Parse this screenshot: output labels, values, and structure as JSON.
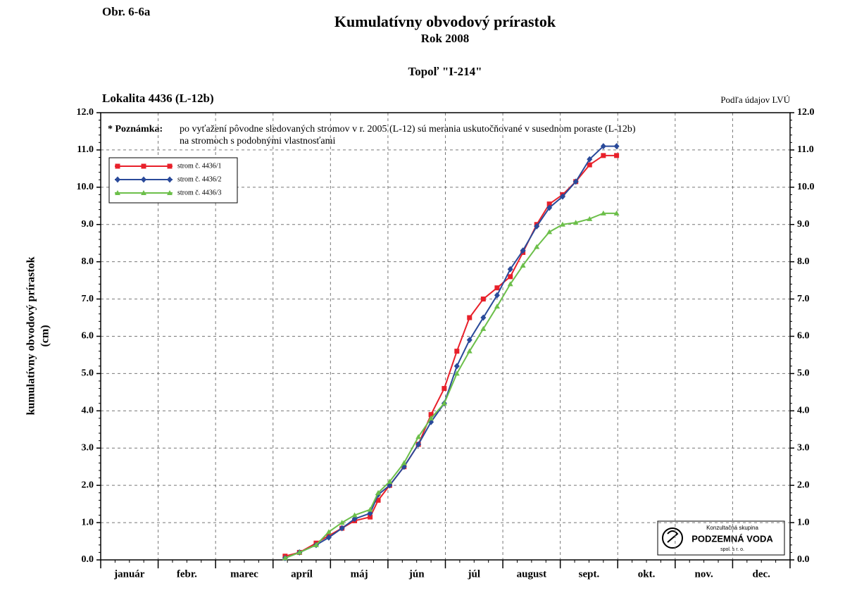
{
  "chart_data": {
    "type": "line",
    "figure_label": "Obr. 6-6a",
    "title": "Kumulatívny obvodový prírastok",
    "subtitle": "Rok 2008",
    "species": "Topoľ \"I-214\"",
    "location": "Lokalita 4436 (L-12b)",
    "source": "Podľa údajov LVÚ",
    "note": {
      "label": "* Poznámka:",
      "lines": [
        "po vyťažení pôvodne sledovaných stromov v r. 2005 (L-12) sú merania uskutočňované v susednom poraste (L-12b)",
        "na stromoch s podobnými vlastnosťami"
      ]
    },
    "ylabel": [
      "kumulatívny obvodový prírastok",
      "(cm)"
    ],
    "logo": [
      "Konzultačná skupina",
      "PODZEMNÁ VODA",
      "spol. s r. o."
    ],
    "categories": [
      "január",
      "febr.",
      "marec",
      "apríl",
      "máj",
      "jún",
      "júl",
      "august",
      "sept.",
      "okt.",
      "nov.",
      "dec."
    ],
    "xlim": [
      0,
      12
    ],
    "x": [
      3.21,
      3.46,
      3.75,
      3.97,
      4.2,
      4.42,
      4.69,
      4.83,
      5.03,
      5.28,
      5.53,
      5.75,
      5.98,
      6.2,
      6.42,
      6.66,
      6.9,
      7.13,
      7.35,
      7.59,
      7.81,
      8.04,
      8.27,
      8.51,
      8.75,
      8.98
    ],
    "ylim": [
      0,
      12
    ],
    "yticks": [
      {
        "value": 0,
        "label": "0.0"
      },
      {
        "value": 1,
        "label": "1.0"
      },
      {
        "value": 2,
        "label": "2.0"
      },
      {
        "value": 3,
        "label": "3.0"
      },
      {
        "value": 4,
        "label": "4.0"
      },
      {
        "value": 5,
        "label": "5.0"
      },
      {
        "value": 6,
        "label": "6.0"
      },
      {
        "value": 7,
        "label": "7.0"
      },
      {
        "value": 8,
        "label": "8.0"
      },
      {
        "value": 9,
        "label": "9.0"
      },
      {
        "value": 10,
        "label": "10.0"
      },
      {
        "value": 11,
        "label": "11.0"
      },
      {
        "value": 12,
        "label": "12.0"
      }
    ],
    "grid": true,
    "legend": "upper left",
    "series": [
      {
        "name": "strom č. 4436/1",
        "color": "#e8202a",
        "marker": "square",
        "values": [
          0.1,
          0.2,
          0.45,
          0.65,
          0.85,
          1.05,
          1.15,
          1.6,
          2.0,
          2.5,
          3.1,
          3.9,
          4.6,
          5.6,
          6.5,
          7.0,
          7.3,
          7.6,
          8.25,
          9.0,
          9.55,
          9.8,
          10.15,
          10.6,
          10.85,
          10.85
        ]
      },
      {
        "name": "strom č. 4436/2",
        "color": "#2a4a9a",
        "marker": "diamond",
        "values": [
          0.05,
          0.2,
          0.4,
          0.6,
          0.85,
          1.1,
          1.25,
          1.75,
          2.0,
          2.5,
          3.1,
          3.7,
          4.2,
          5.2,
          5.9,
          6.5,
          7.1,
          7.8,
          8.3,
          8.95,
          9.45,
          9.75,
          10.15,
          10.75,
          11.1,
          11.1
        ]
      },
      {
        "name": "strom č. 4436/3",
        "color": "#6cbf4a",
        "marker": "triangle",
        "values": [
          0.05,
          0.2,
          0.4,
          0.75,
          1.0,
          1.2,
          1.35,
          1.8,
          2.1,
          2.6,
          3.3,
          3.8,
          4.2,
          5.0,
          5.6,
          6.2,
          6.8,
          7.4,
          7.9,
          8.4,
          8.8,
          9.0,
          9.05,
          9.15,
          9.3,
          9.3
        ]
      }
    ]
  }
}
